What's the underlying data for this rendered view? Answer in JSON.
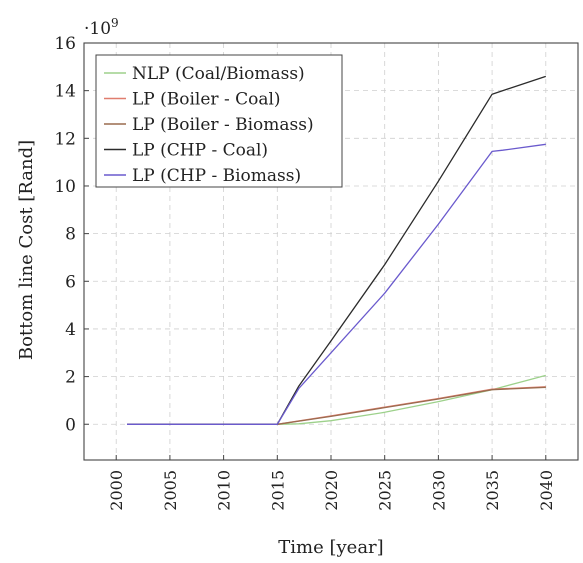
{
  "chart_data": {
    "type": "line",
    "title": "",
    "xlabel": "Time [year]",
    "ylabel": "Bottom line Cost [Rand]",
    "y_multiplier_label": "·10^9",
    "xlim": [
      1997,
      2043
    ],
    "ylim": [
      -1.5,
      16
    ],
    "xticks": [
      2000,
      2005,
      2010,
      2015,
      2020,
      2025,
      2030,
      2035,
      2040
    ],
    "yticks": [
      0,
      2,
      4,
      6,
      8,
      10,
      12,
      14,
      16
    ],
    "grid": true,
    "legend_position": "top-left",
    "series": [
      {
        "name": "NLP (Coal/Biomass)",
        "color": "#9dd18b",
        "x": [
          2001,
          2015,
          2017,
          2020,
          2025,
          2030,
          2035,
          2040
        ],
        "y": [
          0,
          0,
          0.02,
          0.15,
          0.5,
          0.95,
          1.45,
          2.05
        ]
      },
      {
        "name": "LP (Boiler - Coal)",
        "color": "#e07d6e",
        "x": [
          2001,
          2015,
          2020,
          2025,
          2030,
          2035,
          2040
        ],
        "y": [
          0,
          0,
          0.35,
          0.72,
          1.08,
          1.47,
          1.57
        ]
      },
      {
        "name": "LP (Boiler - Biomass)",
        "color": "#9a6b4f",
        "x": [
          2001,
          2015,
          2020,
          2025,
          2030,
          2035,
          2040
        ],
        "y": [
          0,
          0,
          0.33,
          0.7,
          1.06,
          1.45,
          1.55
        ]
      },
      {
        "name": "LP (CHP - Coal)",
        "color": "#2b2b2b",
        "x": [
          2001,
          2015,
          2017,
          2020,
          2025,
          2030,
          2035,
          2040
        ],
        "y": [
          0,
          0,
          1.6,
          3.5,
          6.7,
          10.2,
          13.85,
          14.6
        ]
      },
      {
        "name": "LP (CHP - Biomass)",
        "color": "#6a5acd",
        "x": [
          2001,
          2015,
          2017,
          2020,
          2025,
          2030,
          2035,
          2036,
          2040
        ],
        "y": [
          0,
          0,
          1.5,
          3.0,
          5.5,
          8.4,
          11.45,
          11.5,
          11.75
        ]
      }
    ]
  }
}
